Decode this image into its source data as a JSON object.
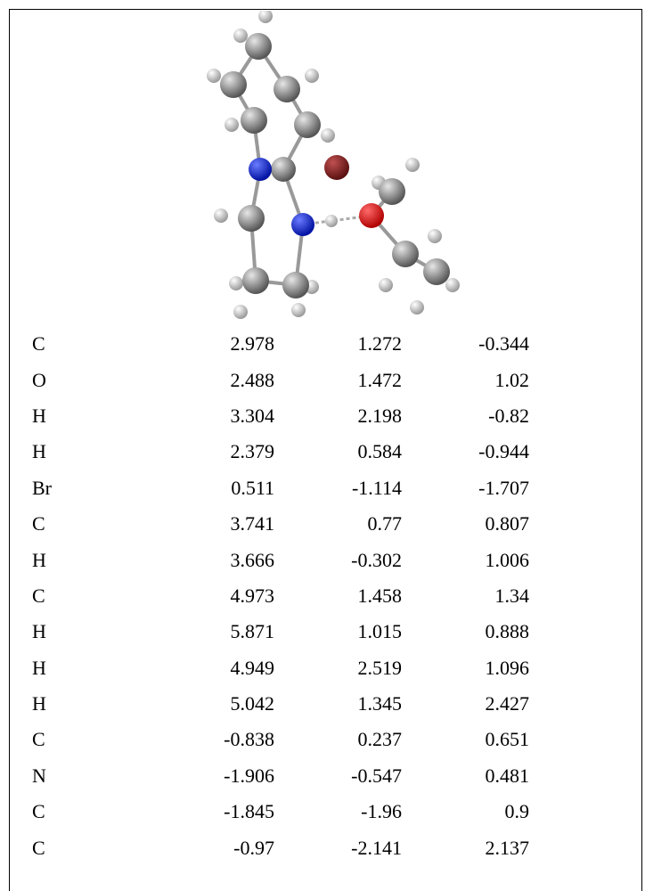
{
  "table": {
    "rows": [
      [
        "C",
        "2.978",
        "1.272",
        "-0.344"
      ],
      [
        "O",
        "2.488",
        "1.472",
        "1.02"
      ],
      [
        "H",
        "3.304",
        "2.198",
        "-0.82"
      ],
      [
        "H",
        "2.379",
        "0.584",
        "-0.944"
      ],
      [
        "Br",
        "0.511",
        "-1.114",
        "-1.707"
      ],
      [
        "C",
        "3.741",
        "0.77",
        "0.807"
      ],
      [
        "H",
        "3.666",
        "-0.302",
        "1.006"
      ],
      [
        "C",
        "4.973",
        "1.458",
        "1.34"
      ],
      [
        "H",
        "5.871",
        "1.015",
        "0.888"
      ],
      [
        "H",
        "4.949",
        "2.519",
        "1.096"
      ],
      [
        "H",
        "5.042",
        "1.345",
        "2.427"
      ],
      [
        "C",
        "-0.838",
        "0.237",
        "0.651"
      ],
      [
        "N",
        "-1.906",
        "-0.547",
        "0.481"
      ],
      [
        "C",
        "-1.845",
        "-1.96",
        "0.9"
      ],
      [
        "C",
        "-0.97",
        "-2.141",
        "2.137"
      ]
    ]
  }
}
